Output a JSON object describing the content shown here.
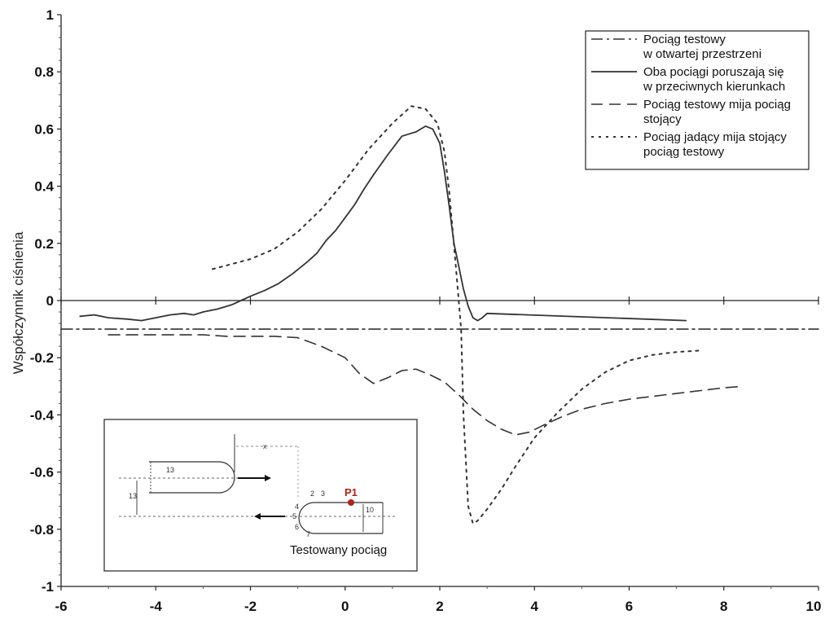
{
  "chart_data": {
    "type": "line",
    "title": "",
    "xlabel": "",
    "ylabel": "Współczynnik ciśnienia",
    "xlim": [
      -6,
      10
    ],
    "ylim": [
      -1,
      1
    ],
    "x_ticks": [
      "-6",
      "-4",
      "-2",
      "0",
      "2",
      "4",
      "6",
      "8",
      "10"
    ],
    "y_ticks": [
      "1",
      "0.8",
      "0.6",
      "0.4",
      "0.2",
      "0",
      "-0.2",
      "-0.4",
      "-0.6",
      "-0.8",
      "-1"
    ],
    "legend_position": "top-right",
    "series": [
      {
        "name": "Pociąg testowy\nw otwartej przestrzeni",
        "style": "dash-dot",
        "color": "#333333",
        "x": [
          -6,
          10
        ],
        "y": [
          -0.1,
          -0.1
        ]
      },
      {
        "name": "Oba pociągi poruszają się\nw przeciwnych kierunkach",
        "style": "solid",
        "color": "#333333",
        "x": [
          -5.6,
          -5.3,
          -5.0,
          -4.6,
          -4.3,
          -4.0,
          -3.7,
          -3.4,
          -3.2,
          -3.0,
          -2.7,
          -2.4,
          -2.2,
          -2.0,
          -1.7,
          -1.4,
          -1.1,
          -0.8,
          -0.6,
          -0.4,
          -0.2,
          0.0,
          0.2,
          0.4,
          0.6,
          0.9,
          1.2,
          1.5,
          1.7,
          1.85,
          2.0,
          2.1,
          2.2,
          2.3,
          2.4,
          2.5,
          2.6,
          2.7,
          2.8,
          2.9,
          3.0,
          7.2
        ],
        "y": [
          -0.055,
          -0.05,
          -0.06,
          -0.065,
          -0.07,
          -0.06,
          -0.05,
          -0.045,
          -0.05,
          -0.04,
          -0.03,
          -0.015,
          0.0,
          0.015,
          0.035,
          0.06,
          0.095,
          0.135,
          0.165,
          0.21,
          0.245,
          0.29,
          0.335,
          0.39,
          0.44,
          0.51,
          0.575,
          0.59,
          0.61,
          0.6,
          0.55,
          0.45,
          0.33,
          0.2,
          0.12,
          0.04,
          -0.02,
          -0.06,
          -0.07,
          -0.06,
          -0.045,
          -0.07
        ]
      },
      {
        "name": "Pociąg testowy mija pociąg\nstojący",
        "style": "dashed",
        "color": "#333333",
        "x": [
          -5.0,
          -4.5,
          -4.0,
          -3.5,
          -3.0,
          -2.5,
          -2.0,
          -1.5,
          -1.0,
          -0.5,
          0.0,
          0.3,
          0.6,
          0.9,
          1.2,
          1.5,
          1.8,
          2.1,
          2.4,
          2.7,
          3.0,
          3.3,
          3.6,
          3.9,
          4.2,
          4.6,
          5.0,
          5.5,
          6.0,
          7.0,
          8.0,
          8.4
        ],
        "y": [
          -0.12,
          -0.12,
          -0.12,
          -0.12,
          -0.12,
          -0.125,
          -0.125,
          -0.125,
          -0.13,
          -0.16,
          -0.2,
          -0.255,
          -0.29,
          -0.27,
          -0.245,
          -0.24,
          -0.26,
          -0.285,
          -0.33,
          -0.38,
          -0.42,
          -0.45,
          -0.47,
          -0.46,
          -0.435,
          -0.405,
          -0.38,
          -0.36,
          -0.345,
          -0.325,
          -0.305,
          -0.3
        ]
      },
      {
        "name": "Pociąg jadący mija stojący\npociąg testowy",
        "style": "dotted",
        "color": "#333333",
        "x": [
          -2.8,
          -2.0,
          -1.5,
          -1.0,
          -0.5,
          0.0,
          0.5,
          1.0,
          1.4,
          1.7,
          1.95,
          2.1,
          2.2,
          2.35,
          2.45,
          2.5,
          2.6,
          2.7,
          2.8,
          3.0,
          3.3,
          3.6,
          4.0,
          4.5,
          5.0,
          5.5,
          6.0,
          6.5,
          7.0,
          7.5
        ],
        "y": [
          0.11,
          0.145,
          0.18,
          0.24,
          0.32,
          0.42,
          0.53,
          0.62,
          0.68,
          0.67,
          0.62,
          0.52,
          0.38,
          0.1,
          -0.1,
          -0.4,
          -0.72,
          -0.78,
          -0.77,
          -0.73,
          -0.66,
          -0.58,
          -0.48,
          -0.39,
          -0.31,
          -0.25,
          -0.21,
          -0.19,
          -0.18,
          -0.175
        ]
      }
    ],
    "inset": {
      "label": "Testowany pociąg",
      "marker_label": "P1",
      "marker_color": "#b0221a",
      "dim_labels": [
        "13",
        "13",
        "10",
        "x"
      ],
      "point_labels": [
        "2",
        "3",
        "4",
        "5",
        "6",
        "7"
      ]
    }
  }
}
